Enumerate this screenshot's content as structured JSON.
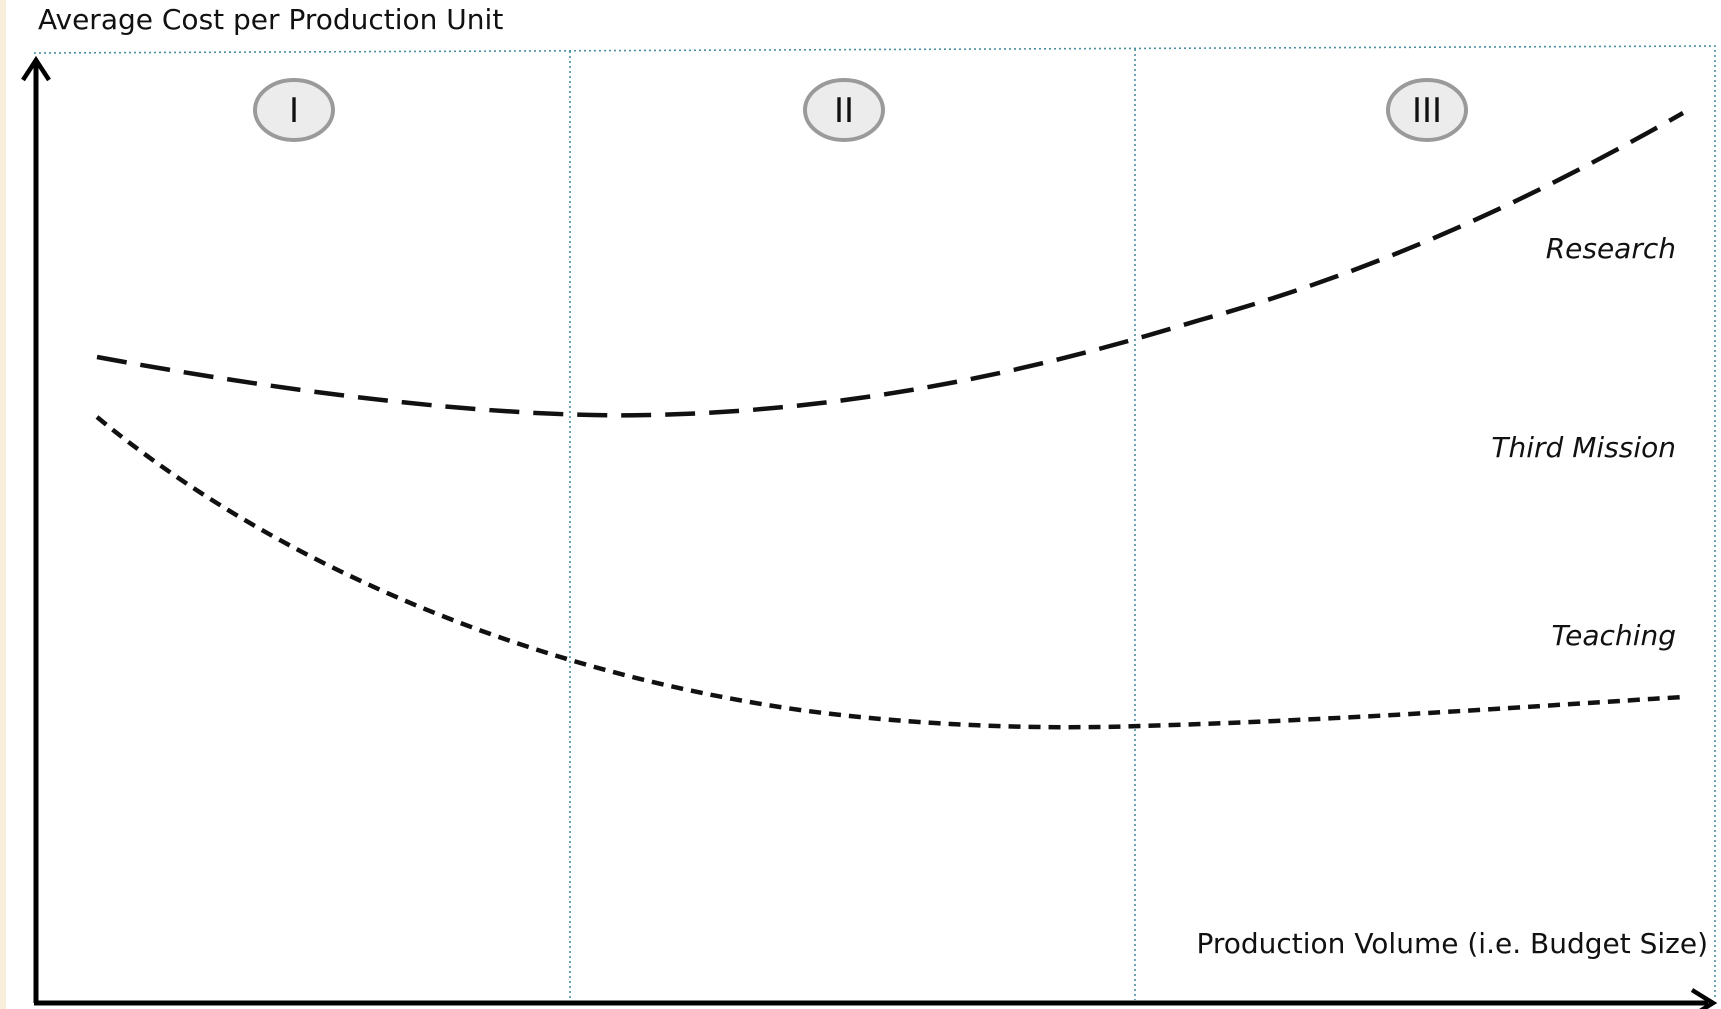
{
  "diagram": {
    "y_axis_title": "Average Cost per Production Unit",
    "x_axis_title": "Production Volume (i.e. Budget Size)",
    "phases": [
      "I",
      "II",
      "III"
    ],
    "curves": [
      {
        "label": "Research",
        "style": "long-dash"
      },
      {
        "label": "Third Mission",
        "style": "none"
      },
      {
        "label": "Teaching",
        "style": "short-dash"
      }
    ],
    "colors": {
      "curve": "#111111",
      "zone_divider": "#4a8fa0",
      "phase_circle_fill": "#ececec",
      "phase_circle_stroke": "#9a9a9a",
      "left_strip": "#f7efd9"
    }
  }
}
